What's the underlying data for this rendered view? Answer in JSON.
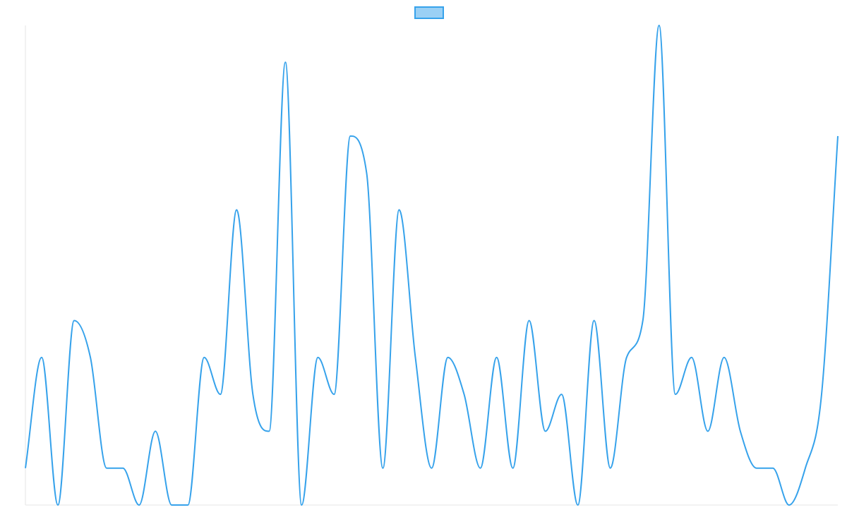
{
  "chart_data": {
    "type": "line",
    "title": "",
    "xlabel": "",
    "ylabel": "",
    "grid": false,
    "legend": {
      "position": "top-center"
    },
    "series": [
      {
        "name": "",
        "color": "#36a2eb",
        "fill_color": "#9ad0f5",
        "values": [
          1,
          4,
          0,
          5,
          4,
          1,
          1,
          0,
          2,
          0,
          0,
          4,
          3,
          8,
          3,
          2,
          12,
          0,
          4,
          3,
          10,
          9,
          1,
          8,
          4,
          1,
          4,
          3,
          1,
          4,
          1,
          5,
          2,
          3,
          0,
          5,
          1,
          4,
          5,
          13,
          3,
          4,
          2,
          4,
          2,
          1,
          1,
          0,
          1,
          3,
          10
        ]
      }
    ],
    "ylim": [
      0,
      13
    ]
  }
}
